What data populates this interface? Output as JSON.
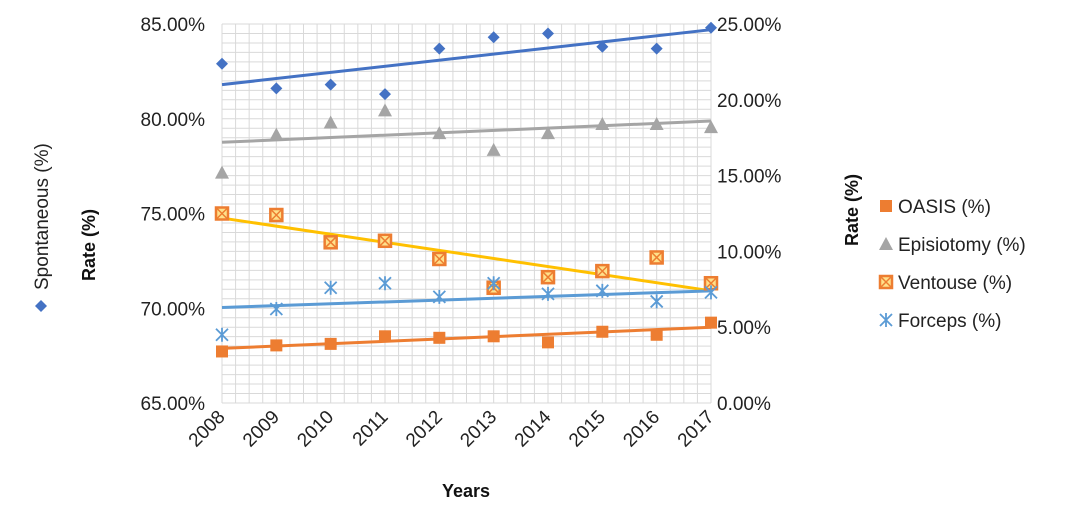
{
  "chart_data": {
    "type": "scatter",
    "xlabel": "Years",
    "ylabel_left": "Rate (%)",
    "ylabel_right": "Rate (%)",
    "x": [
      2008,
      2009,
      2010,
      2011,
      2012,
      2013,
      2014,
      2015,
      2016,
      2017
    ],
    "ylim_left": [
      65,
      85
    ],
    "ylim_right": [
      0,
      25
    ],
    "yticks_left": [
      "65.00%",
      "70.00%",
      "75.00%",
      "80.00%",
      "85.00%"
    ],
    "yticks_right": [
      "0.00%",
      "5.00%",
      "10.00%",
      "15.00%",
      "20.00%",
      "25.00%"
    ],
    "grid": true,
    "legend_position": "right",
    "series": [
      {
        "name": "Spontaneous (%)",
        "axis": "left",
        "marker": "diamond",
        "color": "#4472C4",
        "values": [
          82.9,
          81.6,
          81.8,
          81.3,
          83.7,
          84.3,
          84.5,
          83.8,
          83.7,
          84.8
        ],
        "trendline": [
          81.8,
          84.7
        ]
      },
      {
        "name": "OASIS (%)",
        "axis": "right",
        "marker": "square",
        "color": "#ED7D31",
        "values": [
          3.4,
          3.8,
          3.9,
          4.4,
          4.3,
          4.4,
          4.0,
          4.7,
          4.5,
          5.3
        ],
        "trendline": [
          3.6,
          5.0
        ]
      },
      {
        "name": "Episiotomy (%)",
        "axis": "right",
        "marker": "triangle",
        "color": "#A5A5A5",
        "values": [
          15.2,
          17.7,
          18.5,
          19.3,
          17.8,
          16.7,
          17.8,
          18.4,
          18.4,
          18.2
        ],
        "trendline": [
          17.2,
          18.6
        ]
      },
      {
        "name": "Ventouse (%)",
        "axis": "right",
        "marker": "square-x",
        "color": "#ED7D31",
        "values": [
          12.5,
          12.4,
          10.6,
          10.7,
          9.5,
          7.6,
          8.3,
          8.7,
          9.6,
          7.9
        ],
        "trendline": [
          12.2,
          7.4
        ]
      },
      {
        "name": "Forceps (%)",
        "axis": "right",
        "marker": "asterisk",
        "color": "#5B9BD5",
        "values": [
          4.5,
          6.2,
          7.6,
          7.9,
          7.0,
          7.9,
          7.2,
          7.4,
          6.7,
          7.3
        ],
        "trendline": [
          6.3,
          7.4
        ]
      }
    ],
    "trendline_colors": {
      "Spontaneous (%)": "#4472C4",
      "OASIS (%)": "#ED7D31",
      "Episiotomy (%)": "#A5A5A5",
      "Ventouse (%)": "#FFC000",
      "Forceps (%)": "#5B9BD5"
    },
    "legend_left": "Spontaneous (%)",
    "legend_right": [
      "OASIS (%)",
      "Episiotomy (%)",
      "Ventouse (%)",
      "Forceps (%)"
    ]
  }
}
